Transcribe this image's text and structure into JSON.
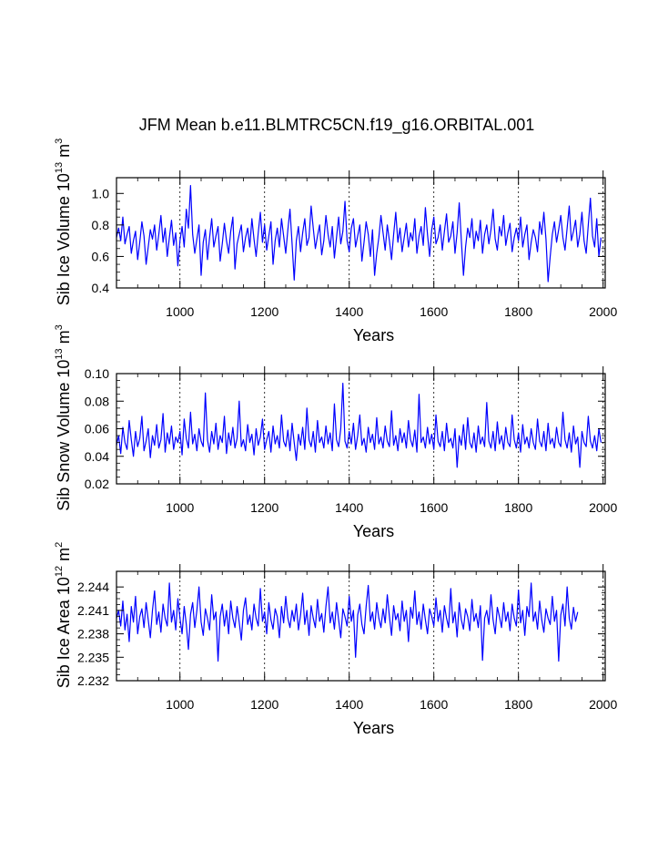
{
  "title": "JFM Mean b.e11.BLMTRC5CN.f19_g16.ORBITAL.001",
  "chart_data": [
    {
      "type": "line",
      "title": "",
      "xlabel": "Years",
      "ylabel_main": "Sib Ice Volume 10",
      "ylabel_sup1": "13",
      "ylabel_tail": " m",
      "ylabel_sup2": "3",
      "xlim": [
        850,
        2005
      ],
      "ylim": [
        0.4,
        1.1
      ],
      "xticks": [
        1000,
        1200,
        1400,
        1600,
        1800,
        2000
      ],
      "yticks": [
        0.4,
        0.6,
        0.8,
        1.0
      ],
      "ytick_labels": [
        "0.4",
        "0.6",
        "0.8",
        "1.0"
      ],
      "xtick_labels": [
        "1000",
        "1200",
        "1400",
        "1600",
        "1800",
        "2000"
      ],
      "gridlines_x": [
        1000,
        1200,
        1400,
        1600,
        1800,
        2000
      ],
      "series": [
        {
          "name": "Sib Ice Volume",
          "color": "#0000ff",
          "x_start": 850,
          "x_step": 5,
          "values": [
            0.72,
            0.78,
            0.7,
            0.85,
            0.68,
            0.74,
            0.79,
            0.62,
            0.7,
            0.76,
            0.58,
            0.69,
            0.82,
            0.73,
            0.55,
            0.66,
            0.77,
            0.71,
            0.8,
            0.64,
            0.74,
            0.86,
            0.69,
            0.78,
            0.6,
            0.72,
            0.83,
            0.67,
            0.75,
            0.54,
            0.7,
            0.79,
            0.66,
            0.9,
            0.78,
            1.05,
            0.74,
            0.62,
            0.71,
            0.8,
            0.48,
            0.69,
            0.77,
            0.58,
            0.72,
            0.84,
            0.66,
            0.73,
            0.79,
            0.57,
            0.68,
            0.81,
            0.7,
            0.62,
            0.76,
            0.85,
            0.52,
            0.68,
            0.74,
            0.8,
            0.63,
            0.72,
            0.78,
            0.66,
            0.84,
            0.71,
            0.6,
            0.75,
            0.88,
            0.69,
            0.8,
            0.64,
            0.73,
            0.82,
            0.55,
            0.7,
            0.78,
            0.66,
            0.84,
            0.73,
            0.62,
            0.77,
            0.9,
            0.68,
            0.45,
            0.7,
            0.79,
            0.63,
            0.75,
            0.84,
            0.67,
            0.72,
            0.92,
            0.78,
            0.65,
            0.73,
            0.8,
            0.61,
            0.7,
            0.86,
            0.74,
            0.66,
            0.79,
            0.59,
            0.72,
            0.85,
            0.68,
            0.76,
            0.95,
            0.7,
            0.63,
            0.78,
            0.84,
            0.66,
            0.73,
            0.8,
            0.57,
            0.69,
            0.82,
            0.74,
            0.6,
            0.77,
            0.48,
            0.62,
            0.72,
            0.86,
            0.75,
            0.64,
            0.8,
            0.7,
            0.58,
            0.74,
            0.88,
            0.69,
            0.78,
            0.63,
            0.72,
            0.81,
            0.66,
            0.75,
            0.7,
            0.84,
            0.62,
            0.73,
            0.79,
            0.67,
            0.91,
            0.74,
            0.6,
            0.77,
            0.85,
            0.68,
            0.72,
            0.8,
            0.64,
            0.76,
            0.87,
            0.69,
            0.73,
            0.82,
            0.62,
            0.75,
            0.94,
            0.7,
            0.48,
            0.66,
            0.78,
            0.72,
            0.84,
            0.65,
            0.76,
            0.7,
            0.83,
            0.62,
            0.74,
            0.8,
            0.68,
            0.77,
            0.9,
            0.71,
            0.64,
            0.79,
            0.73,
            0.86,
            0.67,
            0.75,
            0.81,
            0.63,
            0.72,
            0.78,
            0.7,
            0.85,
            0.66,
            0.74,
            0.8,
            0.58,
            0.69,
            0.77,
            0.72,
            0.63,
            0.82,
            0.74,
            0.88,
            0.71,
            0.44,
            0.6,
            0.74,
            0.82,
            0.69,
            0.77,
            0.86,
            0.72,
            0.64,
            0.78,
            0.92,
            0.7,
            0.76,
            0.83,
            0.66,
            0.74,
            0.88,
            0.7,
            0.62,
            0.8,
            0.97,
            0.73,
            0.66,
            0.84,
            0.6,
            0.72
          ]
        }
      ]
    },
    {
      "type": "line",
      "title": "",
      "xlabel": "Years",
      "ylabel_main": "Sib Snow Volume 10",
      "ylabel_sup1": "13",
      "ylabel_tail": " m",
      "ylabel_sup2": "3",
      "xlim": [
        850,
        2005
      ],
      "ylim": [
        0.02,
        0.1
      ],
      "xticks": [
        1000,
        1200,
        1400,
        1600,
        1800,
        2000
      ],
      "yticks": [
        0.02,
        0.04,
        0.06,
        0.08,
        0.1
      ],
      "ytick_labels": [
        "0.02",
        "0.04",
        "0.06",
        "0.08",
        "0.10"
      ],
      "xtick_labels": [
        "1000",
        "1200",
        "1400",
        "1600",
        "1800",
        "2000"
      ],
      "gridlines_x": [
        1000,
        1200,
        1400,
        1600,
        1800,
        2000
      ],
      "series": [
        {
          "name": "Sib Snow Volume",
          "color": "#0000ff",
          "x_start": 850,
          "x_step": 5,
          "values": [
            0.048,
            0.055,
            0.042,
            0.061,
            0.05,
            0.045,
            0.066,
            0.052,
            0.04,
            0.058,
            0.047,
            0.053,
            0.069,
            0.044,
            0.051,
            0.06,
            0.039,
            0.055,
            0.048,
            0.063,
            0.046,
            0.052,
            0.071,
            0.043,
            0.057,
            0.049,
            0.062,
            0.045,
            0.054,
            0.05,
            0.058,
            0.041,
            0.067,
            0.053,
            0.046,
            0.072,
            0.049,
            0.056,
            0.044,
            0.06,
            0.051,
            0.047,
            0.086,
            0.052,
            0.043,
            0.058,
            0.049,
            0.064,
            0.045,
            0.055,
            0.05,
            0.069,
            0.042,
            0.057,
            0.048,
            0.061,
            0.046,
            0.053,
            0.08,
            0.047,
            0.052,
            0.044,
            0.063,
            0.05,
            0.056,
            0.041,
            0.06,
            0.048,
            0.054,
            0.067,
            0.045,
            0.052,
            0.058,
            0.043,
            0.062,
            0.049,
            0.055,
            0.046,
            0.07,
            0.051,
            0.047,
            0.059,
            0.044,
            0.064,
            0.05,
            0.037,
            0.056,
            0.048,
            0.061,
            0.045,
            0.075,
            0.052,
            0.047,
            0.058,
            0.043,
            0.066,
            0.05,
            0.054,
            0.046,
            0.062,
            0.049,
            0.057,
            0.044,
            0.078,
            0.052,
            0.047,
            0.06,
            0.093,
            0.051,
            0.046,
            0.058,
            0.049,
            0.064,
            0.045,
            0.055,
            0.07,
            0.048,
            0.053,
            0.043,
            0.061,
            0.05,
            0.056,
            0.045,
            0.068,
            0.049,
            0.054,
            0.046,
            0.062,
            0.051,
            0.047,
            0.073,
            0.048,
            0.055,
            0.044,
            0.06,
            0.05,
            0.057,
            0.046,
            0.066,
            0.052,
            0.047,
            0.059,
            0.043,
            0.085,
            0.05,
            0.054,
            0.046,
            0.061,
            0.049,
            0.056,
            0.045,
            0.07,
            0.051,
            0.047,
            0.058,
            0.044,
            0.064,
            0.05,
            0.053,
            0.046,
            0.06,
            0.032,
            0.055,
            0.048,
            0.063,
            0.045,
            0.068,
            0.05,
            0.046,
            0.057,
            0.043,
            0.062,
            0.049,
            0.054,
            0.047,
            0.079,
            0.051,
            0.046,
            0.058,
            0.044,
            0.065,
            0.049,
            0.055,
            0.045,
            0.061,
            0.05,
            0.047,
            0.07,
            0.052,
            0.046,
            0.057,
            0.043,
            0.063,
            0.049,
            0.054,
            0.046,
            0.06,
            0.05,
            0.045,
            0.067,
            0.051,
            0.047,
            0.058,
            0.044,
            0.064,
            0.049,
            0.053,
            0.046,
            0.061,
            0.05,
            0.047,
            0.072,
            0.052,
            0.046,
            0.057,
            0.043,
            0.062,
            0.049,
            0.054,
            0.032,
            0.058,
            0.05,
            0.047,
            0.069,
            0.051,
            0.046,
            0.055,
            0.044,
            0.06,
            0.05
          ]
        }
      ]
    },
    {
      "type": "line",
      "title": "",
      "xlabel": "Years",
      "ylabel_main": "Sib Ice Area 10",
      "ylabel_sup1": "12",
      "ylabel_tail": " m",
      "ylabel_sup2": "2",
      "xlim": [
        850,
        2005
      ],
      "ylim": [
        2.232,
        2.246
      ],
      "xticks": [
        1000,
        1200,
        1400,
        1600,
        1800,
        2000
      ],
      "yticks": [
        2.232,
        2.235,
        2.238,
        2.241,
        2.244
      ],
      "ytick_labels": [
        "2.232",
        "2.235",
        "2.238",
        "2.241",
        "2.244"
      ],
      "xtick_labels": [
        "1000",
        "1200",
        "1400",
        "1600",
        "1800",
        "2000"
      ],
      "gridlines_x": [
        1000,
        1200,
        1400,
        1600,
        1800,
        2000
      ],
      "series": [
        {
          "name": "Sib Ice Area",
          "color": "#0000ff",
          "x_start": 850,
          "x_step": 5,
          "values": [
            2.24,
            2.241,
            2.239,
            2.2422,
            2.2385,
            2.2405,
            2.237,
            2.2415,
            2.2395,
            2.2428,
            2.238,
            2.2402,
            2.2412,
            2.2388,
            2.242,
            2.2398,
            2.2375,
            2.241,
            2.2435,
            2.2392,
            2.2408,
            2.2382,
            2.2418,
            2.24,
            2.239,
            2.2445,
            2.2395,
            2.241,
            2.2385,
            2.2425,
            2.24,
            2.238,
            2.2415,
            2.2392,
            2.236,
            2.2405,
            2.242,
            2.2388,
            2.241,
            2.244,
            2.2395,
            2.2378,
            2.2412,
            2.24,
            2.2385,
            2.243,
            2.2398,
            2.2408,
            2.2345,
            2.2402,
            2.2418,
            2.239,
            2.241,
            2.238,
            2.2422,
            2.24,
            2.2388,
            2.2415,
            2.2395,
            2.2372,
            2.241,
            2.2426,
            2.2392,
            2.2404,
            2.2385,
            2.2418,
            2.24,
            2.239,
            2.2438,
            2.2396,
            2.2408,
            2.238,
            2.242,
            2.2398,
            2.2386,
            2.2412,
            2.2402,
            2.2375,
            2.2415,
            2.2394,
            2.2428,
            2.24,
            2.2388,
            2.241,
            2.2396,
            2.2418,
            2.2385,
            2.2404,
            2.2432,
            2.2392,
            2.241,
            2.2378,
            2.2416,
            2.24,
            2.2388,
            2.2424,
            2.2396,
            2.2406,
            2.2382,
            2.2415,
            2.244,
            2.2394,
            2.2408,
            2.2386,
            2.242,
            2.2398,
            2.2375,
            2.2412,
            2.2402,
            2.239,
            2.2428,
            2.2396,
            2.241,
            2.235,
            2.2404,
            2.2418,
            2.2392,
            2.238,
            2.2415,
            2.2442,
            2.2396,
            2.2408,
            2.2386,
            2.242,
            2.24,
            2.2388,
            2.2412,
            2.2394,
            2.243,
            2.2402,
            2.2378,
            2.2416,
            2.2398,
            2.2406,
            2.2384,
            2.2422,
            2.2396,
            2.241,
            2.237,
            2.2414,
            2.24,
            2.2435,
            2.2392,
            2.2408,
            2.2386,
            2.2418,
            2.2398,
            2.238,
            2.2412,
            2.2402,
            2.239,
            2.2426,
            2.2396,
            2.241,
            2.2382,
            2.2416,
            2.24,
            2.2388,
            2.2438,
            2.2394,
            2.2408,
            2.2376,
            2.242,
            2.2398,
            2.2386,
            2.2412,
            2.2402,
            2.2384,
            2.2424,
            2.2396,
            2.2406,
            2.2388,
            2.2416,
            2.2346,
            2.24,
            2.241,
            2.2392,
            2.243,
            2.2398,
            2.238,
            2.2414,
            2.2402,
            2.2388,
            2.242,
            2.2396,
            2.2408,
            2.2384,
            2.2418,
            2.24,
            2.239,
            2.2436,
            2.2394,
            2.241,
            2.2378,
            2.2415,
            2.2402,
            2.2445,
            2.2396,
            2.2408,
            2.2386,
            2.2422,
            2.2398,
            2.2382,
            2.2412,
            2.24,
            2.2392,
            2.2428,
            2.2396,
            2.241,
            2.2345,
            2.2404,
            2.2418,
            2.239,
            2.244,
            2.24,
            2.2386,
            2.2414,
            2.2396,
            2.2408
          ]
        }
      ]
    }
  ]
}
